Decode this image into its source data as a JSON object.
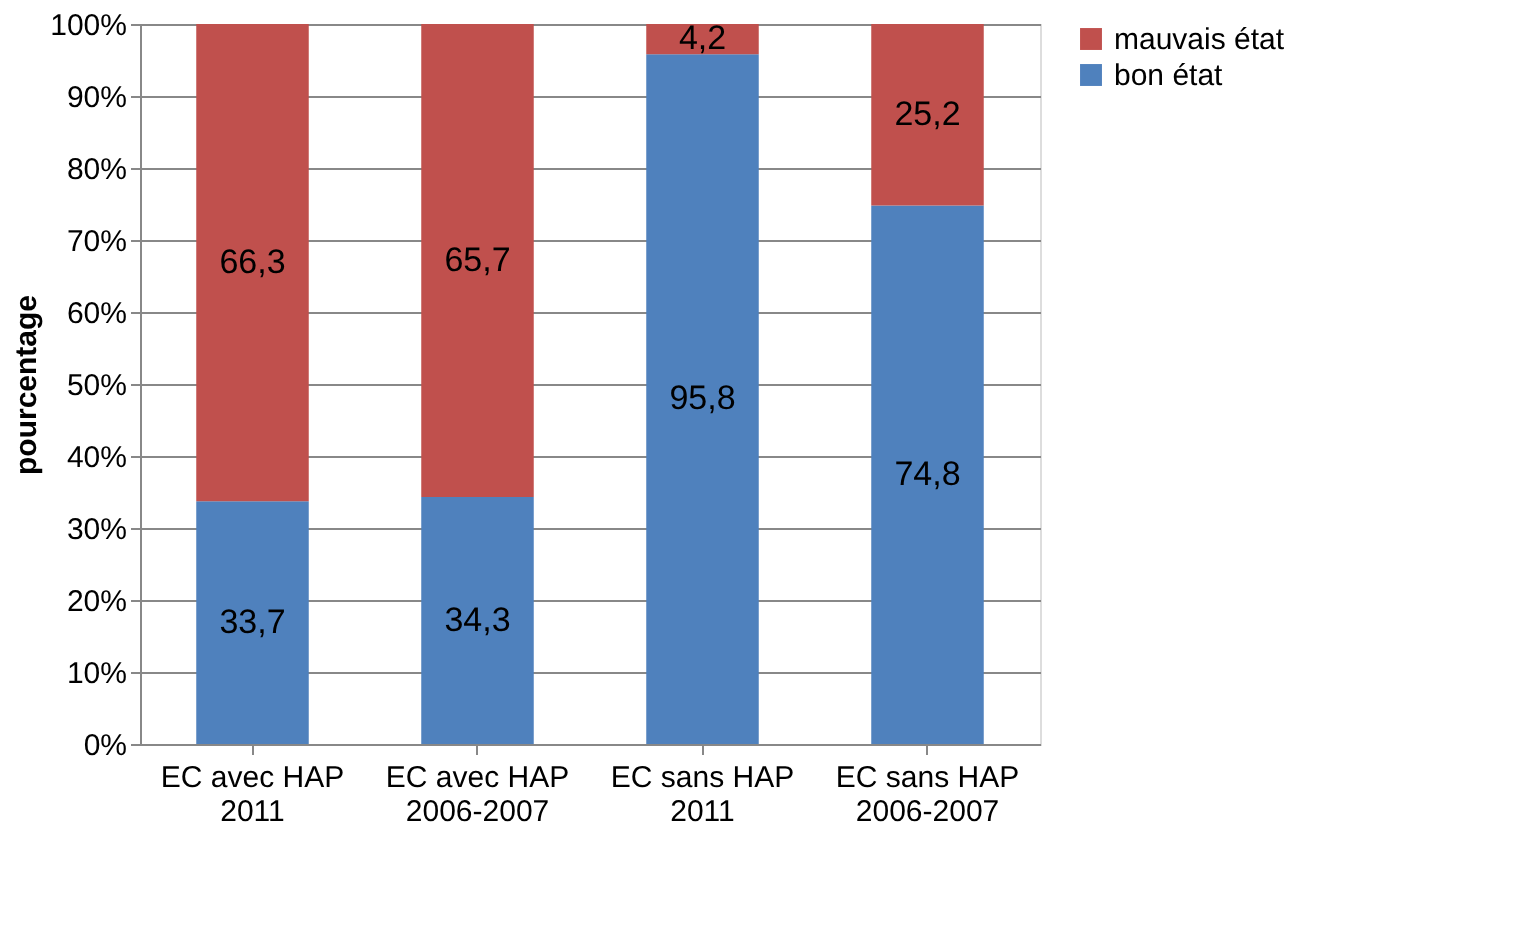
{
  "chart_data": {
    "type": "bar",
    "stacked": true,
    "ylabel": "pourcentage",
    "categories": [
      "EC avec HAP\n2011",
      "EC avec HAP\n2006-2007",
      "EC sans HAP\n2011",
      "EC sans HAP\n2006-2007"
    ],
    "series": [
      {
        "name": "bon état",
        "color": "#4f81bd",
        "values": [
          33.7,
          34.3,
          95.8,
          74.8
        ],
        "value_labels": [
          "33,7",
          "34,3",
          "95,8",
          "74,8"
        ]
      },
      {
        "name": "mauvais état",
        "color": "#c0504d",
        "values": [
          66.3,
          65.7,
          4.2,
          25.2
        ],
        "value_labels": [
          "66,3",
          "65,7",
          "4,2",
          "25,2"
        ]
      }
    ],
    "ylim": [
      0,
      100
    ],
    "yticks": [
      {
        "value": 0,
        "label": "0%"
      },
      {
        "value": 10,
        "label": "10%"
      },
      {
        "value": 20,
        "label": "20%"
      },
      {
        "value": 30,
        "label": "30%"
      },
      {
        "value": 40,
        "label": "40%"
      },
      {
        "value": 50,
        "label": "50%"
      },
      {
        "value": 60,
        "label": "60%"
      },
      {
        "value": 70,
        "label": "70%"
      },
      {
        "value": 80,
        "label": "80%"
      },
      {
        "value": 90,
        "label": "90%"
      },
      {
        "value": 100,
        "label": "100%"
      }
    ],
    "grid": "y",
    "legend": "right"
  }
}
